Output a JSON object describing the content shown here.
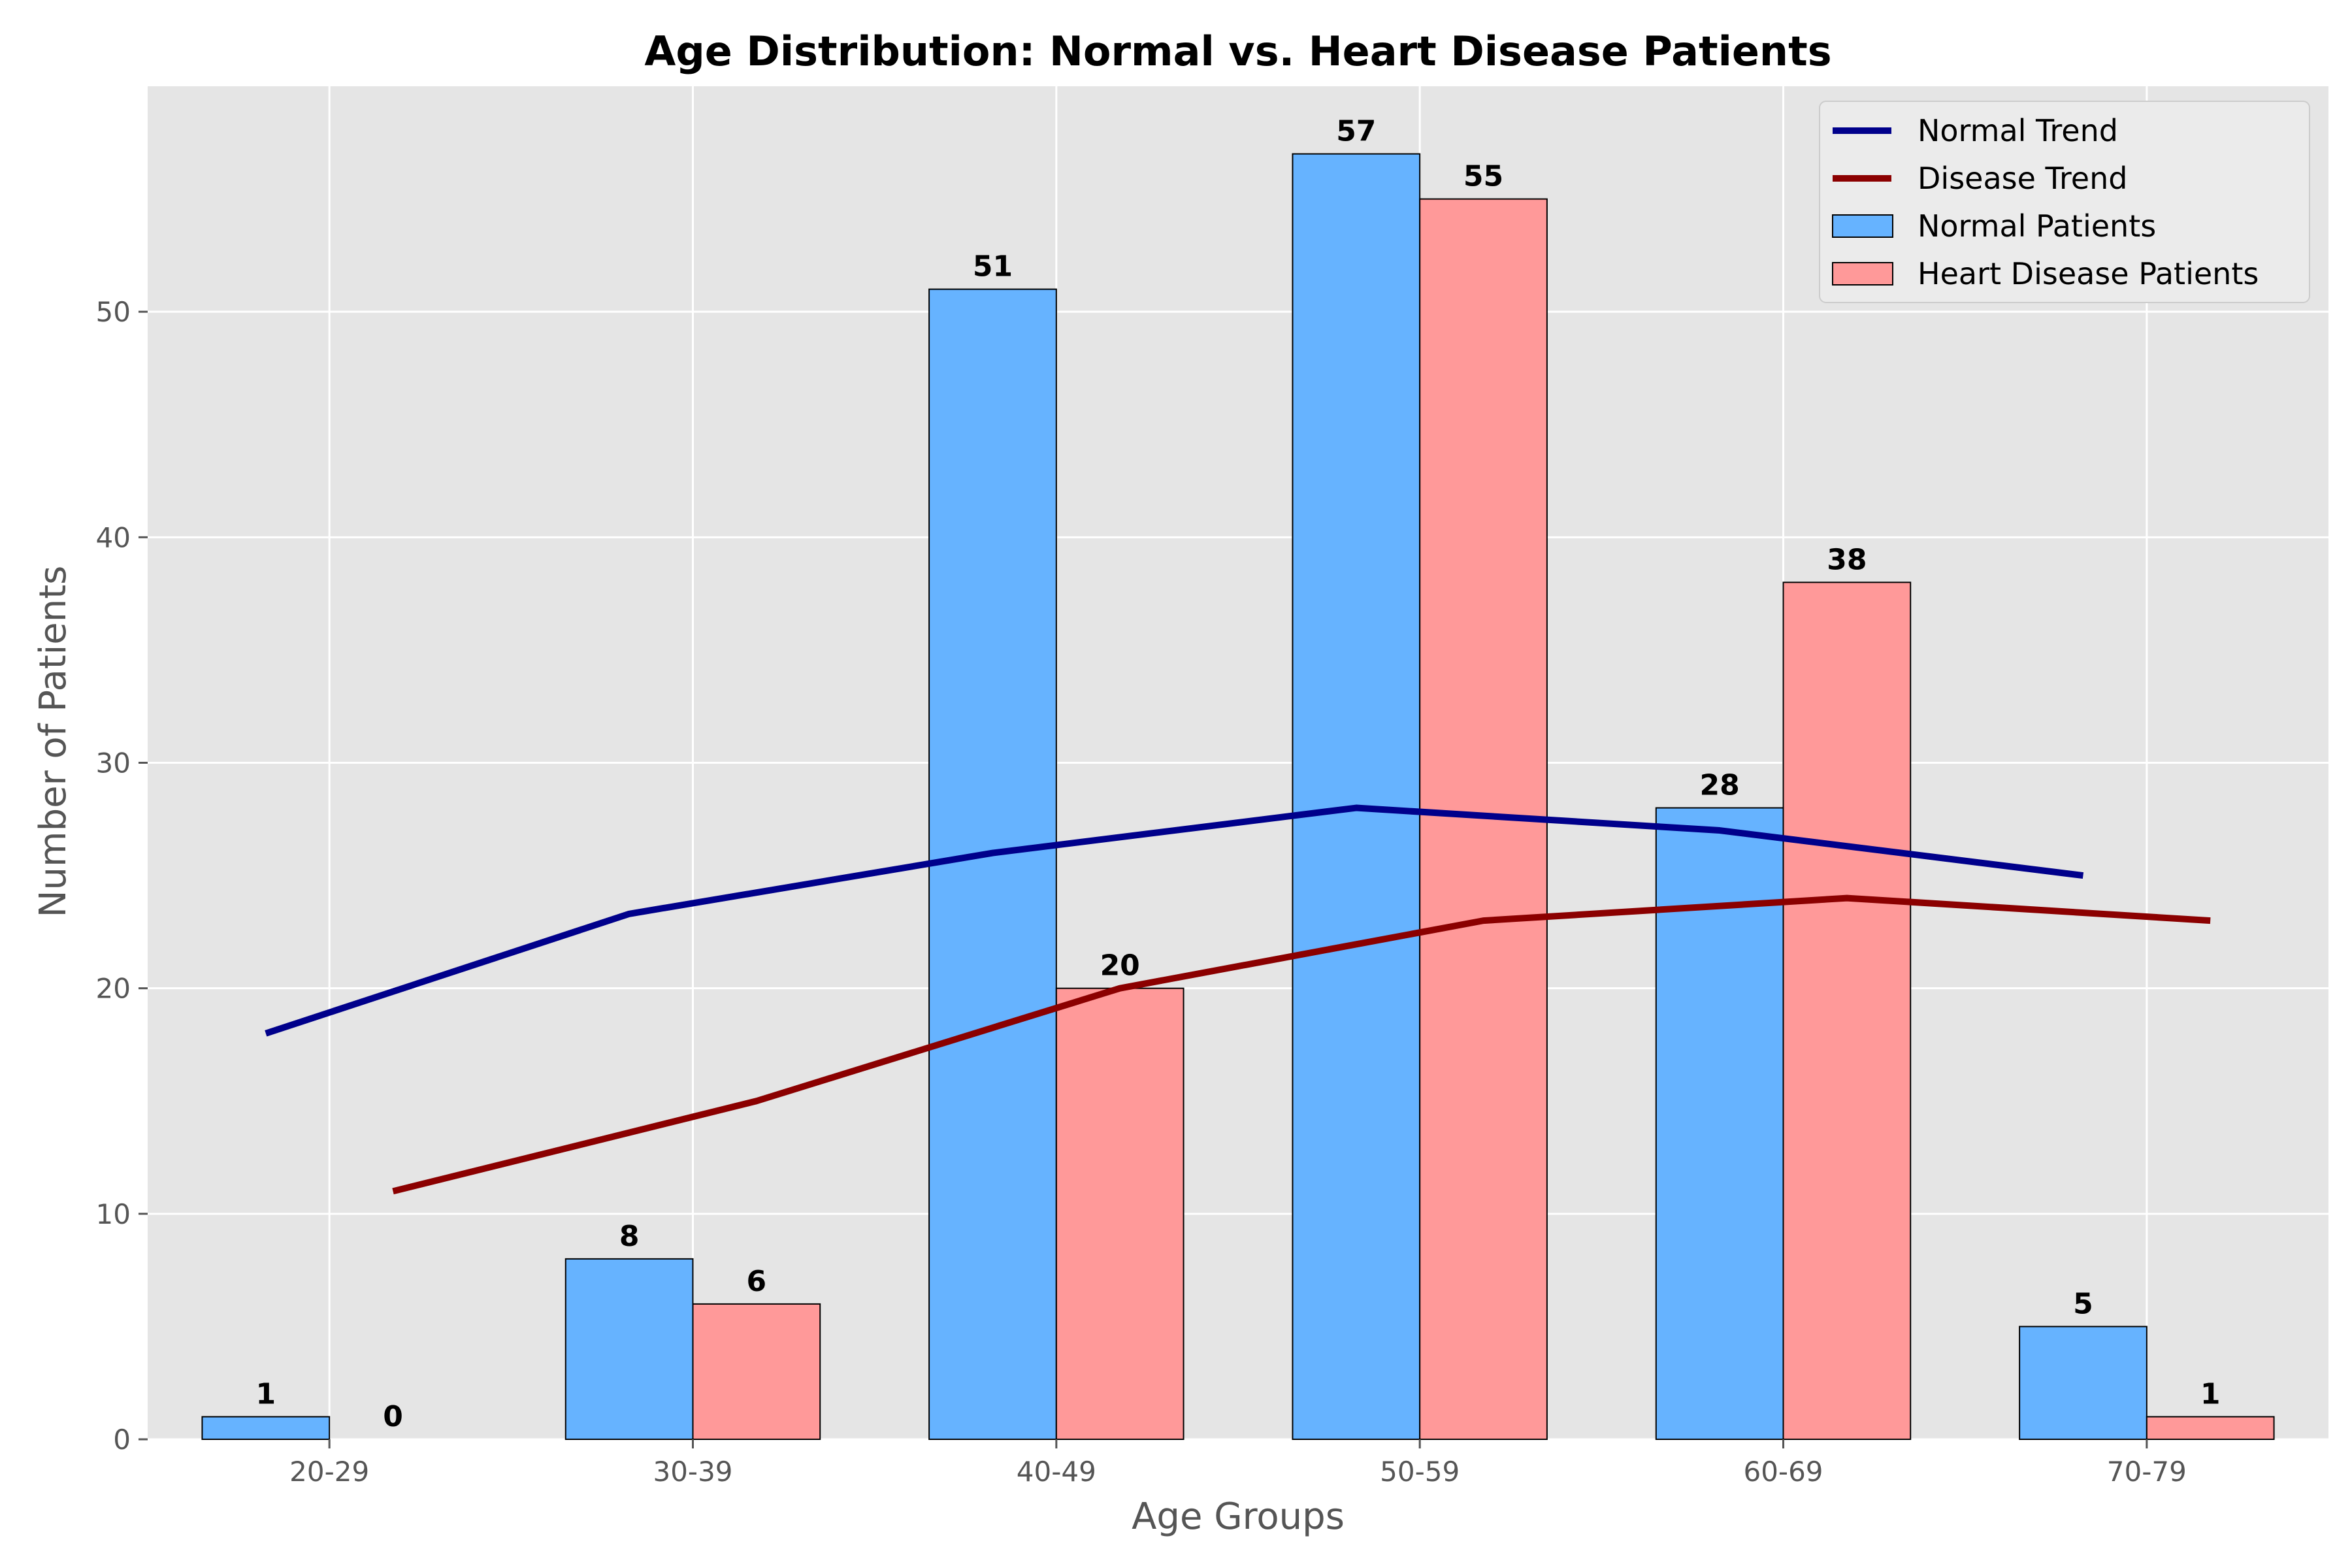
{
  "chart_data": {
    "type": "bar",
    "title": "Age Distribution: Normal vs. Heart Disease Patients",
    "xlabel": "Age Groups",
    "ylabel": "Number of Patients",
    "categories": [
      "20-29",
      "30-39",
      "40-49",
      "50-59",
      "60-69",
      "70-79"
    ],
    "ylim": [
      0,
      60
    ],
    "yticks": [
      "0",
      "10",
      "20",
      "30",
      "40",
      "50"
    ],
    "grid": true,
    "legend_position": "top-right",
    "series": [
      {
        "name": "Normal Patients",
        "kind": "bar",
        "color": "#66b3ff",
        "values": [
          1,
          8,
          51,
          57,
          28,
          5
        ]
      },
      {
        "name": "Heart Disease Patients",
        "kind": "bar",
        "color": "#ff9999",
        "values": [
          0,
          6,
          20,
          55,
          38,
          1
        ]
      },
      {
        "name": "Normal Trend",
        "kind": "line",
        "color": "#00008b",
        "values": [
          18,
          23.3,
          26,
          28,
          27,
          25
        ]
      },
      {
        "name": "Disease Trend",
        "kind": "line",
        "color": "#8b0000",
        "values": [
          11,
          15,
          20,
          23,
          24,
          23
        ]
      }
    ],
    "bar_value_labels": {
      "normal": [
        "1",
        "8",
        "51",
        "57",
        "28",
        "5"
      ],
      "disease": [
        "0",
        "6",
        "20",
        "55",
        "38",
        "1"
      ]
    },
    "legend": [
      "Normal Trend",
      "Disease Trend",
      "Normal Patients",
      "Heart Disease Patients"
    ]
  }
}
